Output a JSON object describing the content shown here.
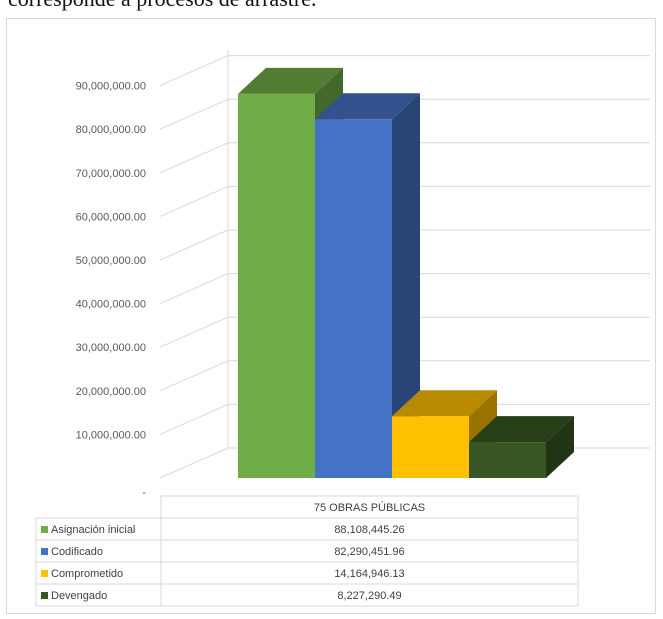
{
  "caption": "corresponde a procesos de arrastre.",
  "chart_data": {
    "type": "bar",
    "categories": [
      "75 OBRAS PÚBLICAS"
    ],
    "series": [
      {
        "name": "Asignación inicial",
        "values": [
          88108445.26
        ],
        "label": "88,108,445.26",
        "color": "#70AD47"
      },
      {
        "name": "Codificado",
        "values": [
          82290451.96
        ],
        "label": "82,290,451.96",
        "color": "#4472C4"
      },
      {
        "name": "Comprometido",
        "values": [
          14164946.13
        ],
        "label": "14,164,946.13",
        "color": "#FFC000"
      },
      {
        "name": "Devengado",
        "values": [
          8227290.49
        ],
        "label": "8,227,290.49",
        "color": "#375623"
      }
    ],
    "yticks": [
      "-",
      "10,000,000.00",
      "20,000,000.00",
      "30,000,000.00",
      "40,000,000.00",
      "50,000,000.00",
      "60,000,000.00",
      "70,000,000.00",
      "80,000,000.00",
      "90,000,000.00"
    ],
    "ylim": [
      0,
      90000000
    ],
    "grid": true,
    "title": "",
    "xlabel": "",
    "ylabel": ""
  }
}
